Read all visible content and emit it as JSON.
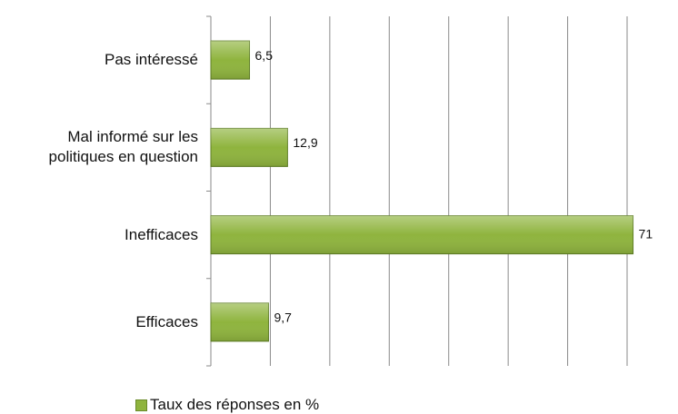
{
  "chart_data": {
    "type": "hbar",
    "categories": [
      "Pas intéressé",
      "Mal informé sur les politiques en question",
      "Inefficaces",
      "Efficaces"
    ],
    "series": [
      {
        "name": "Taux des réponses en %",
        "color": "#8fb43e",
        "values": [
          6.5,
          12.9,
          71,
          9.7
        ],
        "value_labels": [
          "6,5",
          "12,9",
          "71",
          "9,7"
        ]
      }
    ],
    "xlim": [
      0,
      70
    ],
    "xticks": [
      0,
      10,
      20,
      30,
      40,
      50,
      60,
      70
    ],
    "grid": true,
    "legend": "bottom"
  }
}
